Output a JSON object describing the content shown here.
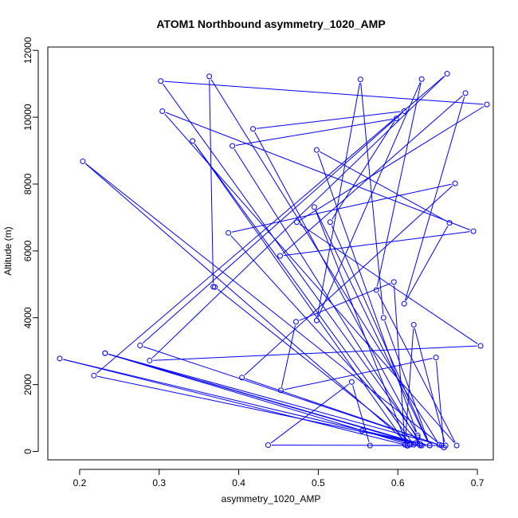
{
  "chart_data": {
    "type": "line",
    "title": "ATOM1 Northbound asymmetry_1020_AMP",
    "xlabel": "asymmetry_1020_AMP",
    "ylabel": "Altitude (m)",
    "xlim": [
      0.16,
      0.72
    ],
    "ylim": [
      -250,
      12100
    ],
    "x_ticks": [
      0.2,
      0.3,
      0.4,
      0.5,
      0.6,
      0.7
    ],
    "x_tick_labels": [
      "0.2",
      "0.3",
      "0.4",
      "0.5",
      "0.6",
      "0.7"
    ],
    "y_ticks": [
      0,
      2000,
      4000,
      6000,
      8000,
      10000,
      12000
    ],
    "y_tick_labels": [
      "0",
      "2000",
      "4000",
      "6000",
      "8000",
      "10000",
      "12000"
    ],
    "grid": false,
    "series": [
      {
        "color": "#0000ff",
        "marker": "open-circle",
        "x": [
          0.612,
          0.175,
          0.622,
          0.232,
          0.655,
          0.204,
          0.615,
          0.232,
          0.628,
          0.218,
          0.662,
          0.288,
          0.704,
          0.473,
          0.712,
          0.302,
          0.625,
          0.404,
          0.672,
          0.387,
          0.63,
          0.392,
          0.598,
          0.515,
          0.64,
          0.495,
          0.612,
          0.342,
          0.62,
          0.37,
          0.368,
          0.363,
          0.652,
          0.276,
          0.608,
          0.418,
          0.625,
          0.498,
          0.665,
          0.608,
          0.685,
          0.452,
          0.695,
          0.304,
          0.674,
          0.573,
          0.63,
          0.498,
          0.553,
          0.582,
          0.64,
          0.555,
          0.628,
          0.437,
          0.542,
          0.565,
          0.66,
          0.62,
          0.609,
          0.595,
          0.472,
          0.453,
          0.648,
          0.658
        ],
        "y": [
          180,
          2780,
          250,
          2940,
          180,
          8680,
          200,
          2940,
          230,
          2270,
          11300,
          2720,
          3160,
          6860,
          10380,
          11080,
          420,
          2210,
          8020,
          6540,
          180,
          9140,
          9960,
          6860,
          180,
          7310,
          170,
          9290,
          200,
          4920,
          4930,
          11220,
          200,
          3170,
          10180,
          9650,
          480,
          9020,
          6840,
          4420,
          10720,
          5850,
          6590,
          10180,
          180,
          4830,
          11140,
          3920,
          11130,
          4000,
          180,
          620,
          180,
          190,
          2080,
          180,
          180,
          3790,
          200,
          5070,
          3880,
          1830,
          2810,
          120
        ]
      }
    ]
  }
}
